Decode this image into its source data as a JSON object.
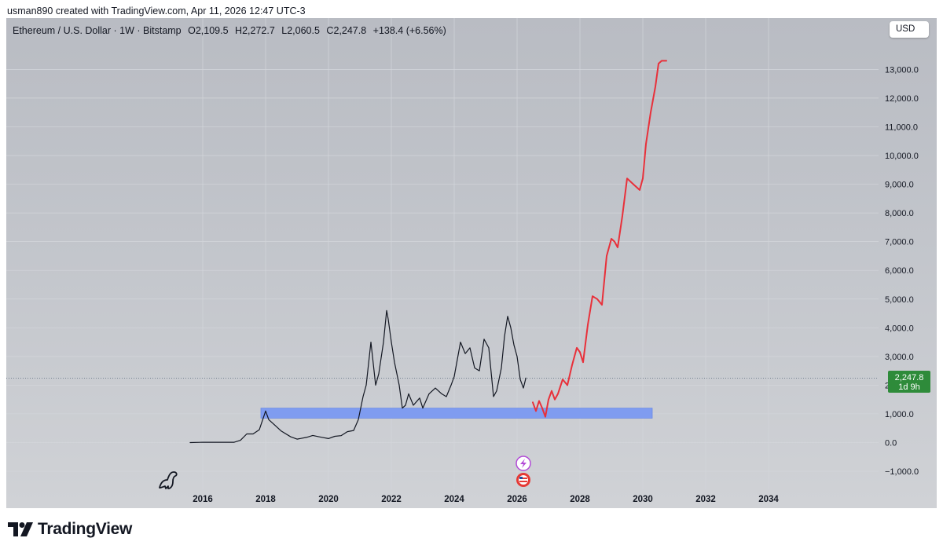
{
  "header": {
    "created_by": "usman890 created with TradingView.com, Apr 11, 2026 12:47 UTC-3"
  },
  "symbol_bar": {
    "name": "Ethereum / U.S. Dollar · 1W · Bitstamp",
    "open": "O2,109.5",
    "high": "H2,272.7",
    "low": "L2,060.5",
    "close": "C2,247.8",
    "change": "+138.4 (+6.56%)"
  },
  "currency_button": "USD",
  "price_badge": {
    "price": "2,247.8",
    "countdown": "1d 9h",
    "color": "#2e8b3a"
  },
  "brand": {
    "wordmark": "TradingView"
  },
  "colors": {
    "background": "#c2c5cb",
    "price_line": "#131722",
    "projection_line": "#e8303a",
    "support_zone": "#7f9cf0"
  },
  "icons": [
    "tradingview-logo-icon",
    "dinosaur-icon",
    "lightning-event-icon",
    "us-flag-event-icon"
  ],
  "chart_data": {
    "type": "line",
    "title": "",
    "xlabel": "",
    "ylabel": "",
    "x_ticks": [
      "2016",
      "2018",
      "2020",
      "2022",
      "2024",
      "2026",
      "2028",
      "2030",
      "2032",
      "2034"
    ],
    "y_ticks": [
      "13,000.0",
      "12,000.0",
      "11,000.0",
      "10,000.0",
      "9,000.0",
      "8,000.0",
      "7,000.0",
      "6,000.0",
      "5,000.0",
      "4,000.0",
      "3,000.0",
      "2,000.0",
      "1,000.0",
      "0.0",
      "−1,000.0"
    ],
    "ylim": [
      -1000,
      13000
    ],
    "grid": true,
    "current_price": 2247.8,
    "series": [
      {
        "role": "price",
        "x": [
          2015.6,
          2016.0,
          2016.5,
          2017.0,
          2017.2,
          2017.4,
          2017.6,
          2017.8,
          2018.0,
          2018.1,
          2018.3,
          2018.5,
          2018.8,
          2019.0,
          2019.3,
          2019.5,
          2019.8,
          2020.0,
          2020.2,
          2020.4,
          2020.6,
          2020.8,
          2020.95,
          2021.1,
          2021.2,
          2021.35,
          2021.5,
          2021.6,
          2021.75,
          2021.85,
          2021.9,
          2022.0,
          2022.1,
          2022.25,
          2022.35,
          2022.45,
          2022.55,
          2022.7,
          2022.9,
          2023.0,
          2023.2,
          2023.4,
          2023.6,
          2023.75,
          2023.9,
          2024.0,
          2024.2,
          2024.35,
          2024.5,
          2024.65,
          2024.8,
          2024.95,
          2025.1,
          2025.25,
          2025.35,
          2025.5,
          2025.6,
          2025.7,
          2025.8,
          2025.9,
          2026.0,
          2026.1,
          2026.2,
          2026.28
        ],
        "y": [
          1,
          10,
          12,
          10,
          80,
          300,
          300,
          450,
          1100,
          800,
          600,
          400,
          200,
          120,
          180,
          250,
          180,
          140,
          220,
          240,
          380,
          420,
          800,
          1600,
          2000,
          3500,
          2000,
          2400,
          3500,
          4600,
          4300,
          3500,
          2800,
          2000,
          1200,
          1300,
          1700,
          1300,
          1550,
          1200,
          1700,
          1900,
          1700,
          1600,
          2000,
          2300,
          3500,
          3100,
          3300,
          2600,
          2500,
          3600,
          3300,
          1600,
          1800,
          2600,
          3700,
          4400,
          4000,
          3400,
          3000,
          2200,
          1900,
          2247.8
        ]
      },
      {
        "role": "projection",
        "x": [
          2026.5,
          2026.6,
          2026.7,
          2026.8,
          2026.9,
          2027.0,
          2027.1,
          2027.2,
          2027.3,
          2027.45,
          2027.6,
          2027.75,
          2027.9,
          2028.0,
          2028.1,
          2028.25,
          2028.4,
          2028.55,
          2028.7,
          2028.85,
          2029.0,
          2029.1,
          2029.2,
          2029.35,
          2029.5,
          2029.7,
          2029.9,
          2030.0,
          2030.1,
          2030.25,
          2030.4,
          2030.5,
          2030.6,
          2030.7,
          2030.75
        ],
        "y": [
          1400,
          1100,
          1450,
          1200,
          900,
          1500,
          1800,
          1500,
          1700,
          2200,
          2000,
          2700,
          3300,
          3150,
          2800,
          4100,
          5100,
          5000,
          4800,
          6500,
          7100,
          7000,
          6800,
          7900,
          9200,
          9000,
          8800,
          9200,
          10400,
          11500,
          12400,
          13200,
          13300,
          13300,
          13300
        ]
      }
    ],
    "support_zone": {
      "x_start": 2017.85,
      "x_end": 2030.3,
      "y_low": 850,
      "y_high": 1200
    }
  }
}
